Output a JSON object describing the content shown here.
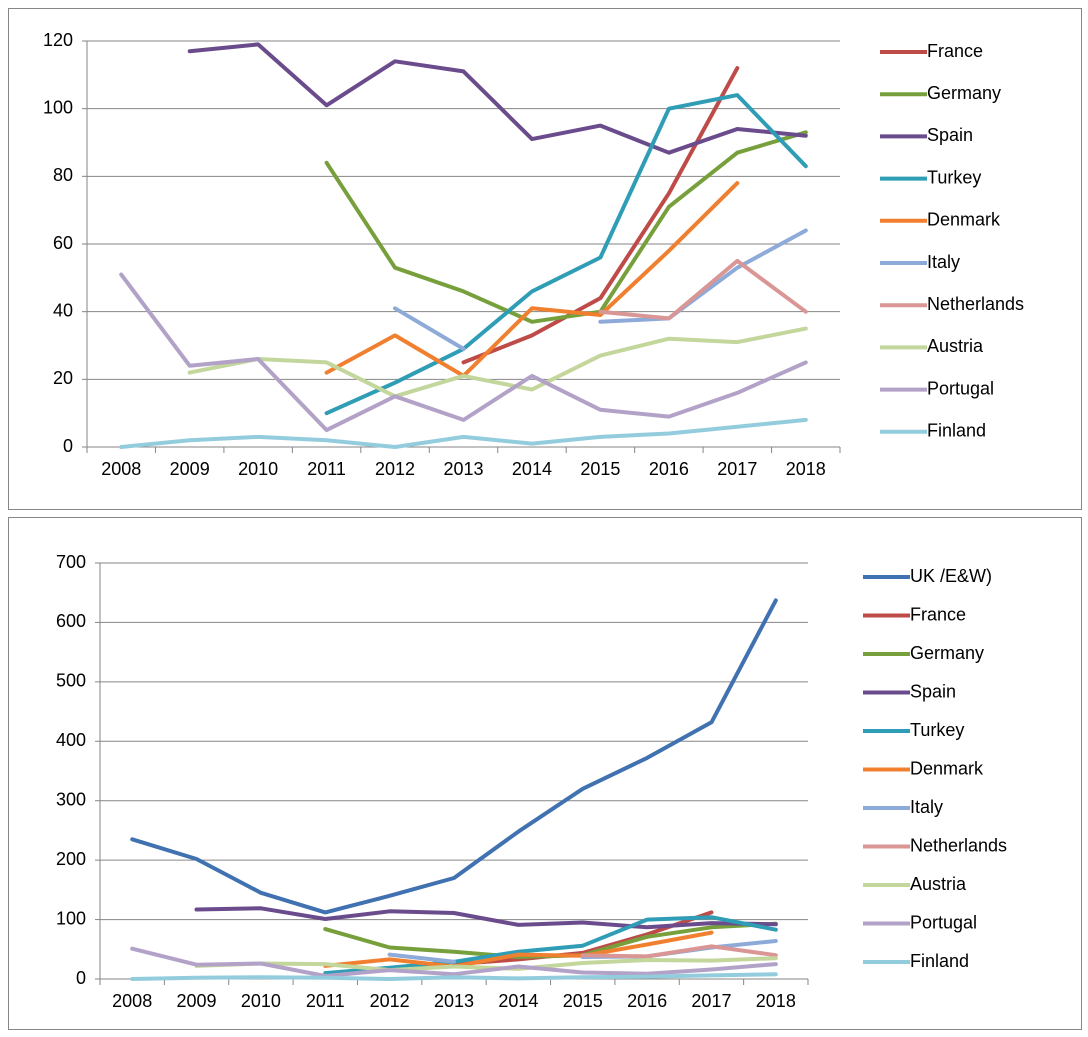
{
  "chart_data": [
    {
      "type": "line",
      "categories": [
        "2008",
        "2009",
        "2010",
        "2011",
        "2012",
        "2013",
        "2014",
        "2015",
        "2016",
        "2017",
        "2018"
      ],
      "ylim": [
        0,
        120
      ],
      "yticks": [
        0,
        20,
        40,
        60,
        80,
        100,
        120
      ],
      "grid": true,
      "legend": "right",
      "series": [
        {
          "name": "France",
          "color": "#be4b48",
          "values": [
            null,
            null,
            null,
            null,
            null,
            25,
            33,
            44,
            75,
            112,
            null
          ]
        },
        {
          "name": "Germany",
          "color": "#77a03c",
          "values": [
            null,
            null,
            null,
            84,
            53,
            46,
            37,
            40,
            71,
            87,
            93
          ]
        },
        {
          "name": "Spain",
          "color": "#6a4c8c",
          "values": [
            null,
            117,
            119,
            101,
            114,
            111,
            91,
            95,
            87,
            94,
            92
          ]
        },
        {
          "name": "Turkey",
          "color": "#2f9db5",
          "values": [
            null,
            null,
            null,
            10,
            19,
            29,
            46,
            56,
            100,
            104,
            83
          ]
        },
        {
          "name": "Denmark",
          "color": "#f08030",
          "values": [
            null,
            null,
            null,
            22,
            33,
            21,
            41,
            39,
            58,
            78,
            null
          ]
        },
        {
          "name": "Italy",
          "color": "#8eaad8",
          "values": [
            null,
            null,
            null,
            null,
            41,
            29,
            null,
            37,
            38,
            53,
            64
          ]
        },
        {
          "name": "Netherlands",
          "color": "#d99694",
          "values": [
            null,
            null,
            null,
            null,
            null,
            null,
            null,
            40,
            38,
            55,
            40
          ]
        },
        {
          "name": "Austria",
          "color": "#c3d69b",
          "values": [
            null,
            22,
            26,
            25,
            15,
            21,
            17,
            27,
            32,
            31,
            35
          ]
        },
        {
          "name": "Portugal",
          "color": "#b3a2c7",
          "values": [
            51,
            24,
            26,
            5,
            15,
            8,
            21,
            11,
            9,
            16,
            25
          ]
        },
        {
          "name": "Finland",
          "color": "#93cddd",
          "values": [
            0,
            2,
            3,
            2,
            0,
            3,
            1,
            3,
            4,
            6,
            8
          ]
        }
      ]
    },
    {
      "type": "line",
      "categories": [
        "2008",
        "2009",
        "2010",
        "2011",
        "2012",
        "2013",
        "2014",
        "2015",
        "2016",
        "2017",
        "2018"
      ],
      "ylim": [
        0,
        700
      ],
      "yticks": [
        0,
        100,
        200,
        300,
        400,
        500,
        600,
        700
      ],
      "grid": true,
      "legend": "right",
      "series": [
        {
          "name": "UK /E&W)",
          "color": "#4071b0",
          "values": [
            235,
            202,
            145,
            112,
            140,
            170,
            248,
            320,
            372,
            432,
            637
          ]
        },
        {
          "name": "France",
          "color": "#be4b48",
          "values": [
            null,
            null,
            null,
            null,
            null,
            25,
            33,
            44,
            75,
            112,
            null
          ]
        },
        {
          "name": "Germany",
          "color": "#77a03c",
          "values": [
            null,
            null,
            null,
            84,
            53,
            46,
            37,
            40,
            71,
            87,
            93
          ]
        },
        {
          "name": "Spain",
          "color": "#6a4c8c",
          "values": [
            null,
            117,
            119,
            101,
            114,
            111,
            91,
            95,
            87,
            94,
            92
          ]
        },
        {
          "name": "Turkey",
          "color": "#2f9db5",
          "values": [
            null,
            null,
            null,
            10,
            19,
            29,
            46,
            56,
            100,
            104,
            83
          ]
        },
        {
          "name": "Denmark",
          "color": "#f08030",
          "values": [
            null,
            null,
            null,
            22,
            33,
            21,
            41,
            39,
            58,
            78,
            null
          ]
        },
        {
          "name": "Italy",
          "color": "#8eaad8",
          "values": [
            null,
            null,
            null,
            null,
            41,
            29,
            null,
            37,
            38,
            53,
            64
          ]
        },
        {
          "name": "Netherlands",
          "color": "#d99694",
          "values": [
            null,
            null,
            null,
            null,
            null,
            null,
            null,
            40,
            38,
            55,
            40
          ]
        },
        {
          "name": "Austria",
          "color": "#c3d69b",
          "values": [
            null,
            22,
            26,
            25,
            15,
            21,
            17,
            27,
            32,
            31,
            35
          ]
        },
        {
          "name": "Portugal",
          "color": "#b3a2c7",
          "values": [
            51,
            24,
            26,
            5,
            15,
            8,
            21,
            11,
            9,
            16,
            25
          ]
        },
        {
          "name": "Finland",
          "color": "#93cddd",
          "values": [
            0,
            2,
            3,
            2,
            0,
            3,
            1,
            3,
            4,
            6,
            8
          ]
        }
      ]
    }
  ]
}
